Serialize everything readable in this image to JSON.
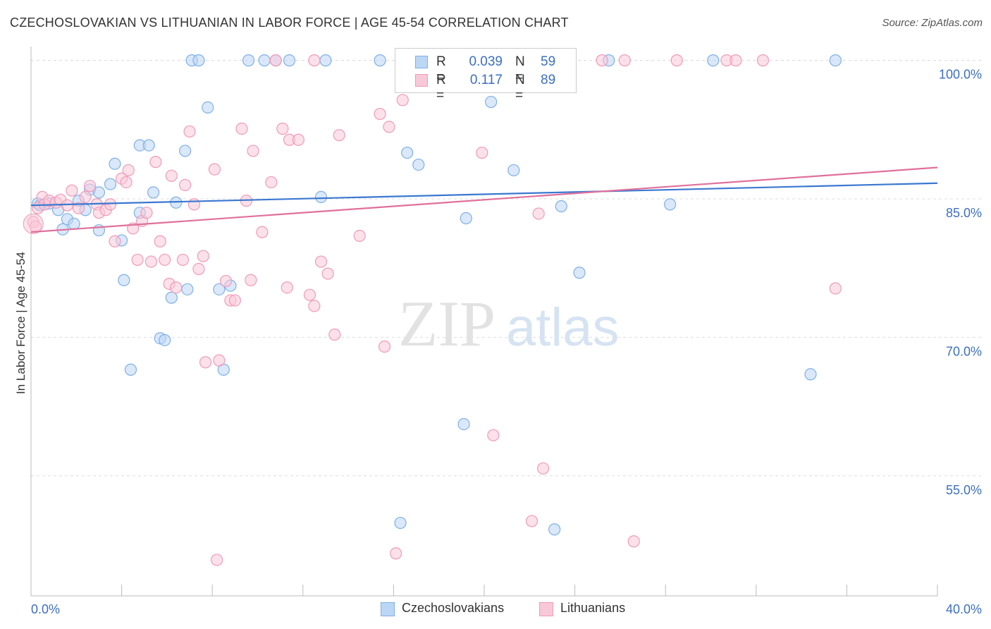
{
  "title": "CZECHOSLOVAKIAN VS LITHUANIAN IN LABOR FORCE | AGE 45-54 CORRELATION CHART",
  "source": "Source: ZipAtlas.com",
  "watermark": {
    "zip": "ZIP",
    "atlas": "atlas"
  },
  "legend": {
    "r_key": "R =",
    "n_key": "N =",
    "rows": [
      {
        "r": "0.039",
        "n": "59"
      },
      {
        "r": "0.117",
        "n": "89"
      }
    ]
  },
  "chart_data": {
    "type": "scatter",
    "xlabel": "",
    "ylabel": "In Labor Force | Age 45-54",
    "xlim": [
      0,
      40
    ],
    "ylim": [
      42,
      101.5
    ],
    "x_tick_labels": {
      "min": "0.0%",
      "max": "40.0%"
    },
    "y_ticks": [
      {
        "value": 55,
        "label": "55.0%"
      },
      {
        "value": 70,
        "label": "70.0%"
      },
      {
        "value": 85,
        "label": "85.0%"
      },
      {
        "value": 100,
        "label": "100.0%"
      }
    ],
    "grid": true,
    "series": [
      {
        "name": "Czechoslovakians",
        "color": "#7fb0e8",
        "fill": "#bcd6f5",
        "line_color": "#3a78d0",
        "trend": {
          "x": [
            0,
            40
          ],
          "y": [
            84.3,
            86.7
          ]
        },
        "points": [
          [
            0.3,
            84.5
          ],
          [
            0.4,
            84.3
          ],
          [
            0.8,
            84.5
          ],
          [
            1.2,
            83.8
          ],
          [
            1.4,
            81.7
          ],
          [
            1.6,
            82.8
          ],
          [
            1.9,
            82.3
          ],
          [
            2.1,
            84.8
          ],
          [
            2.4,
            83.8
          ],
          [
            2.6,
            86.0
          ],
          [
            3.0,
            85.7
          ],
          [
            3.0,
            81.6
          ],
          [
            3.5,
            86.6
          ],
          [
            3.7,
            88.8
          ],
          [
            4.0,
            80.5
          ],
          [
            4.1,
            76.2
          ],
          [
            4.4,
            66.5
          ],
          [
            4.8,
            83.5
          ],
          [
            4.8,
            90.8
          ],
          [
            5.2,
            90.8
          ],
          [
            5.4,
            85.7
          ],
          [
            5.7,
            69.9
          ],
          [
            5.9,
            69.7
          ],
          [
            6.2,
            74.3
          ],
          [
            6.4,
            84.6
          ],
          [
            6.8,
            90.2
          ],
          [
            6.9,
            75.2
          ],
          [
            7.1,
            100.0
          ],
          [
            7.4,
            100.0
          ],
          [
            7.8,
            94.9
          ],
          [
            8.3,
            75.2
          ],
          [
            8.5,
            66.5
          ],
          [
            8.8,
            75.6
          ],
          [
            9.6,
            100.0
          ],
          [
            10.3,
            100.0
          ],
          [
            10.8,
            100.0
          ],
          [
            11.4,
            100.0
          ],
          [
            12.8,
            85.2
          ],
          [
            13.0,
            100.0
          ],
          [
            15.4,
            100.0
          ],
          [
            16.3,
            49.9
          ],
          [
            16.6,
            90.0
          ],
          [
            17.1,
            88.7
          ],
          [
            17.7,
            99.8
          ],
          [
            19.1,
            60.6
          ],
          [
            19.2,
            82.9
          ],
          [
            19.5,
            100.0
          ],
          [
            20.3,
            95.5
          ],
          [
            21.3,
            88.1
          ],
          [
            22.0,
            100.0
          ],
          [
            22.5,
            100.0
          ],
          [
            23.1,
            49.2
          ],
          [
            23.4,
            84.2
          ],
          [
            24.2,
            77.0
          ],
          [
            25.5,
            100.0
          ],
          [
            28.2,
            84.4
          ],
          [
            30.1,
            100.0
          ],
          [
            34.4,
            66.0
          ],
          [
            35.5,
            100.0
          ]
        ]
      },
      {
        "name": "Lithuanians",
        "color": "#f19ab7",
        "fill": "#f9c8d8",
        "line_color": "#e0709a",
        "trend": {
          "x": [
            0,
            40
          ],
          "y": [
            81.4,
            88.4
          ]
        },
        "points": [
          [
            0.1,
            82.5
          ],
          [
            0.2,
            82.0
          ],
          [
            0.3,
            84.0
          ],
          [
            0.5,
            85.2
          ],
          [
            0.6,
            84.4
          ],
          [
            0.8,
            84.8
          ],
          [
            1.1,
            84.6
          ],
          [
            1.3,
            84.9
          ],
          [
            1.6,
            84.3
          ],
          [
            1.8,
            85.9
          ],
          [
            2.1,
            84.0
          ],
          [
            2.4,
            85.2
          ],
          [
            2.6,
            86.4
          ],
          [
            2.9,
            84.4
          ],
          [
            3.0,
            83.5
          ],
          [
            3.3,
            83.8
          ],
          [
            3.5,
            84.4
          ],
          [
            3.7,
            80.4
          ],
          [
            4.0,
            87.2
          ],
          [
            4.2,
            86.8
          ],
          [
            4.3,
            88.1
          ],
          [
            4.5,
            81.8
          ],
          [
            4.7,
            78.4
          ],
          [
            4.9,
            82.6
          ],
          [
            5.1,
            83.5
          ],
          [
            5.3,
            78.2
          ],
          [
            5.5,
            89.0
          ],
          [
            5.7,
            80.4
          ],
          [
            5.9,
            78.4
          ],
          [
            6.1,
            75.8
          ],
          [
            6.2,
            87.5
          ],
          [
            6.4,
            75.4
          ],
          [
            6.7,
            78.4
          ],
          [
            6.8,
            86.5
          ],
          [
            7.0,
            92.3
          ],
          [
            7.2,
            84.4
          ],
          [
            7.4,
            77.4
          ],
          [
            7.6,
            78.8
          ],
          [
            7.7,
            67.3
          ],
          [
            8.1,
            88.2
          ],
          [
            8.2,
            45.9
          ],
          [
            8.3,
            67.5
          ],
          [
            8.6,
            76.1
          ],
          [
            8.8,
            74.0
          ],
          [
            9.0,
            74.0
          ],
          [
            9.3,
            92.6
          ],
          [
            9.5,
            84.8
          ],
          [
            9.7,
            76.2
          ],
          [
            9.8,
            90.2
          ],
          [
            10.2,
            81.4
          ],
          [
            10.6,
            86.8
          ],
          [
            10.8,
            100.0
          ],
          [
            11.1,
            92.6
          ],
          [
            11.3,
            75.4
          ],
          [
            11.4,
            91.4
          ],
          [
            11.8,
            91.4
          ],
          [
            12.3,
            74.6
          ],
          [
            12.5,
            73.4
          ],
          [
            12.5,
            100.0
          ],
          [
            12.8,
            78.2
          ],
          [
            13.1,
            76.9
          ],
          [
            13.4,
            70.3
          ],
          [
            13.6,
            91.9
          ],
          [
            14.5,
            81.0
          ],
          [
            15.4,
            94.2
          ],
          [
            15.6,
            69.0
          ],
          [
            15.8,
            92.8
          ],
          [
            16.1,
            46.6
          ],
          [
            16.4,
            95.7
          ],
          [
            16.6,
            100.0
          ],
          [
            18.0,
            100.0
          ],
          [
            18.2,
            99.7
          ],
          [
            19.4,
            100.0
          ],
          [
            19.9,
            90.0
          ],
          [
            20.4,
            59.4
          ],
          [
            20.8,
            100.0
          ],
          [
            22.1,
            50.1
          ],
          [
            22.4,
            83.4
          ],
          [
            22.6,
            55.8
          ],
          [
            22.9,
            100.0
          ],
          [
            23.6,
            100.0
          ],
          [
            25.2,
            100.0
          ],
          [
            26.2,
            100.0
          ],
          [
            26.6,
            47.9
          ],
          [
            28.5,
            100.0
          ],
          [
            30.7,
            100.0
          ],
          [
            31.1,
            100.0
          ],
          [
            32.3,
            100.0
          ],
          [
            35.5,
            75.3
          ]
        ]
      }
    ]
  }
}
